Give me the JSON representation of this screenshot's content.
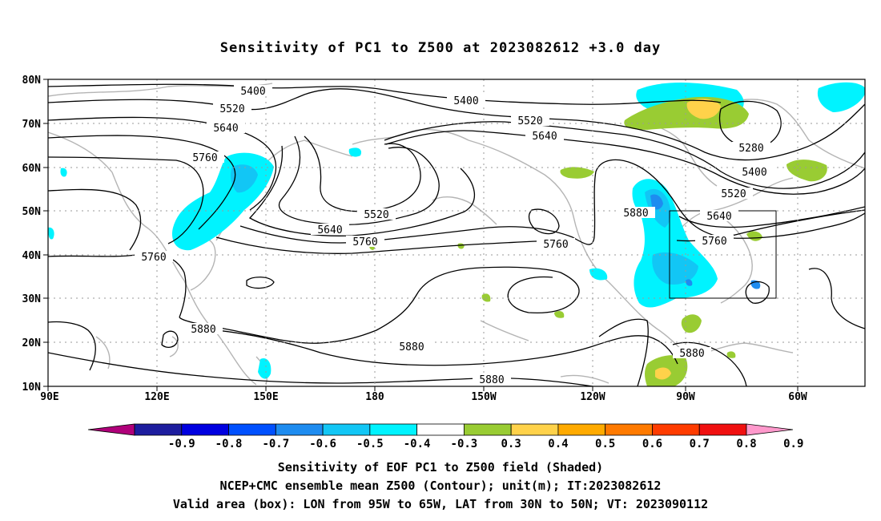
{
  "title": "Sensitivity of PC1 to Z500 at 2023082612 +3.0 day",
  "axes": {
    "lat_labels": [
      "80N",
      "70N",
      "60N",
      "50N",
      "40N",
      "30N",
      "20N",
      "10N"
    ],
    "lon_labels": [
      "90E",
      "120E",
      "150E",
      "180",
      "150W",
      "120W",
      "90W",
      "60W"
    ]
  },
  "contour_labels": [
    "5400",
    "5400",
    "5520",
    "5520",
    "5640",
    "5640",
    "5760",
    "5280",
    "5400",
    "5520",
    "5520",
    "5640",
    "5640",
    "5760",
    "5760",
    "5760",
    "5760",
    "5880",
    "5880",
    "5880",
    "5880",
    "5880"
  ],
  "colorbar": {
    "labels": [
      "-0.9",
      "-0.8",
      "-0.7",
      "-0.6",
      "-0.5",
      "-0.4",
      "-0.3",
      "0.3",
      "0.4",
      "0.5",
      "0.6",
      "0.7",
      "0.8",
      "0.9"
    ],
    "colors": [
      "#b0007a",
      "#1d1d9e",
      "#0000e0",
      "#0050ff",
      "#1e8cf0",
      "#12c6f5",
      "#00f3ff",
      "#ffffff",
      "#99cc33",
      "#ffd24a",
      "#ffaa00",
      "#ff7a00",
      "#ff3c00",
      "#f01010",
      "#ff99cc"
    ]
  },
  "valid_box": {
    "lon_west": "95W",
    "lon_east": "65W",
    "lat_south": "30N",
    "lat_north": "50N"
  },
  "captions": [
    "Sensitivity of EOF PC1 to Z500 field (Shaded)",
    "NCEP+CMC ensemble mean Z500 (Contour); unit(m); IT:2023082612",
    "Valid area (box): LON from 95W to 65W, LAT from 30N to 50N; VT: 2023090112"
  ]
}
